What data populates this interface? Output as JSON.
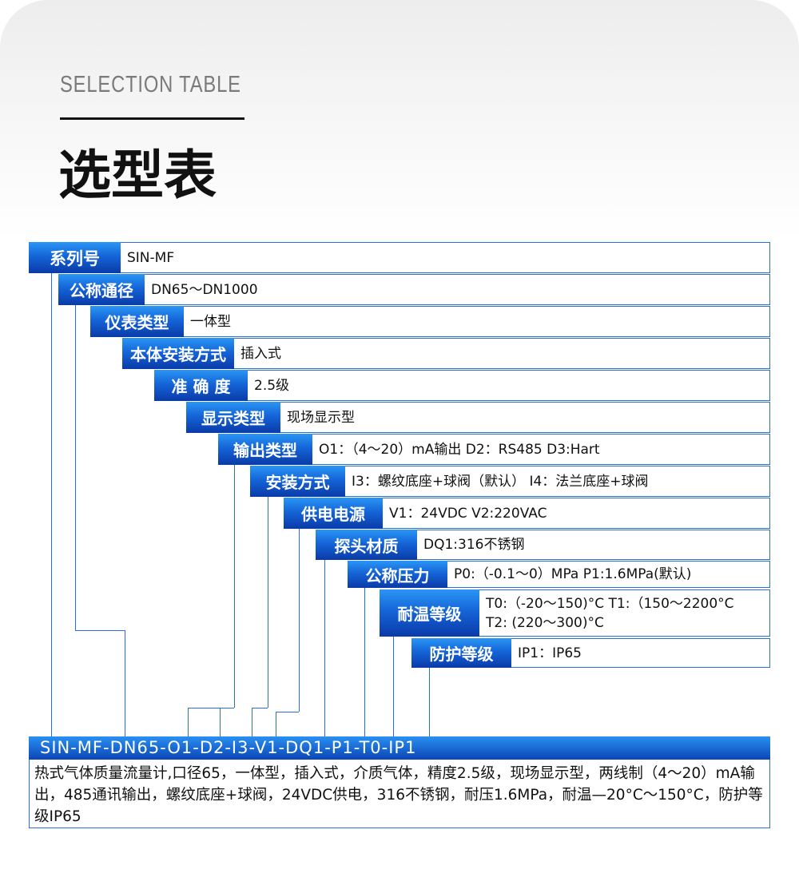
{
  "header": {
    "subtitle": "SELECTION TABLE",
    "title": "选型表"
  },
  "colors": {
    "label_blue_top": "#2a96f5",
    "label_blue_bottom": "#0a3aa8",
    "border_blue": "#2a6fd8"
  },
  "rows": [
    {
      "label": "系列号",
      "value": "SIN-MF"
    },
    {
      "label": "公称通径",
      "value": "DN65～DN1000"
    },
    {
      "label": "仪表类型",
      "value": "一体型"
    },
    {
      "label": "本体安装方式",
      "value": "插入式"
    },
    {
      "label": "准 确 度",
      "value": "2.5级"
    },
    {
      "label": "显示类型",
      "value": "现场显示型"
    },
    {
      "label": "输出类型",
      "value": "O1：（4～20）mA输出  D2：RS485 D3:Hart"
    },
    {
      "label": "安装方式",
      "value": "I3：螺纹底座+球阀（默认） I4：法兰底座+球阀"
    },
    {
      "label": "供电电源",
      "value": "V1：24VDC V2:220VAC"
    },
    {
      "label": "探头材质",
      "value": "DQ1:316不锈钢"
    },
    {
      "label": "公称压力",
      "value": "P0:（-0.1～0）MPa P1:1.6MPa(默认)"
    },
    {
      "label": "耐温等级",
      "value": "T0:（-20～150)°C T1:（150～2200°C",
      "value2": "T2: (220～300)°C"
    },
    {
      "label": "防护等级",
      "value": "IP1：IP65"
    }
  ],
  "model_code": "SIN-MF-DN65-O1-D2-I3-V1-DQ1-P1-T0-IP1",
  "description": "热式气体质量流量计,口径65，一体型，插入式，介质气体，精度2.5级，现场显示型，两线制（4～20）mA输出，485通讯输出，螺纹底座+球阀，24VDC供电，316不锈钢，耐压1.6MPa，耐温—20°C～150°C，防护等级IP65"
}
